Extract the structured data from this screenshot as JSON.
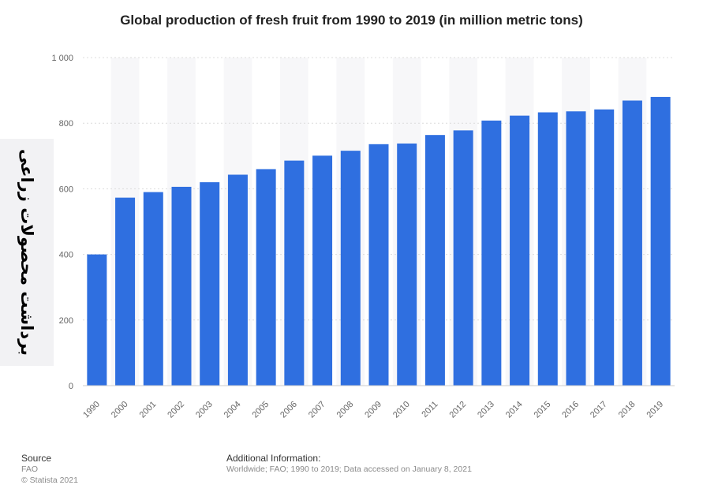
{
  "chart_data": {
    "type": "bar",
    "title": "Global production of fresh fruit from 1990 to 2019 (in million metric tons)",
    "ylabel": "برداشت محصولات زراعی",
    "categories": [
      "1990",
      "2000",
      "2001",
      "2002",
      "2003",
      "2004",
      "2005",
      "2006",
      "2007",
      "2008",
      "2009",
      "2010",
      "2011",
      "2012",
      "2013",
      "2014",
      "2015",
      "2016",
      "2017",
      "2018",
      "2019"
    ],
    "values": [
      400,
      573,
      590,
      606,
      620,
      643,
      660,
      686,
      701,
      716,
      736,
      738,
      764,
      778,
      808,
      823,
      833,
      836,
      842,
      869,
      880
    ],
    "ylim": [
      0,
      1000
    ],
    "yticks": [
      0,
      200,
      400,
      600,
      800,
      1000
    ],
    "ytick_labels": [
      "0",
      "200",
      "400",
      "600",
      "800",
      "1 000"
    ],
    "bar_color": "#2f6fe0",
    "grid": true
  },
  "footer": {
    "source_heading": "Source",
    "source_name": "FAO",
    "copyright": "© Statista 2021",
    "additional_heading": "Additional Information:",
    "additional_text": "Worldwide; FAO; 1990 to 2019; Data accessed on January 8, 2021"
  }
}
